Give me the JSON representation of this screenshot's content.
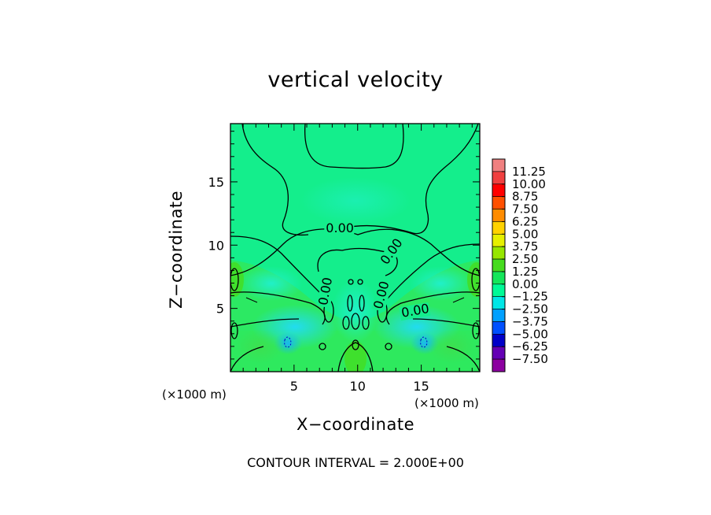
{
  "chart_data": {
    "type": "heatmap",
    "title": "vertical velocity",
    "xlabel": "X−coordinate",
    "ylabel": "Z−coordinate",
    "x_unit_label": "(×1000 m)",
    "x_unit_label_right": "(×1000 m)",
    "xlim": [
      0,
      19.6
    ],
    "ylim": [
      0,
      19.6
    ],
    "xticks": [
      5,
      10,
      15
    ],
    "yticks": [
      5,
      10,
      15
    ],
    "contour_interval_text": "CONTOUR INTERVAL = 2.000E+00",
    "contour_labels": [
      {
        "text": "0.00",
        "x": 7.5,
        "z": 11.0,
        "angle": 0
      },
      {
        "text": "0.00",
        "x": 12.3,
        "z": 8.4,
        "angle": -55
      },
      {
        "text": "0.00",
        "x": 7.6,
        "z": 5.2,
        "angle": -80
      },
      {
        "text": "0.00",
        "x": 11.9,
        "z": 4.9,
        "angle": -75
      },
      {
        "text": "0.00",
        "x": 13.5,
        "z": 4.3,
        "angle": -10
      }
    ],
    "colorbar": {
      "levels": [
        "11.25",
        "10.00",
        "8.75",
        "7.50",
        "6.25",
        "5.00",
        "3.75",
        "2.50",
        "1.25",
        "0.00",
        "−1.25",
        "−2.50",
        "−3.75",
        "−5.00",
        "−6.25",
        "−7.50"
      ],
      "colors": [
        "#f08080",
        "#f04040",
        "#ff0000",
        "#ff5000",
        "#ff8c00",
        "#ffd200",
        "#e6f000",
        "#96e600",
        "#46dc1e",
        "#14e65a",
        "#00fa96",
        "#00e6e6",
        "#00a0ff",
        "#0050ff",
        "#0000c8",
        "#6400b4",
        "#8c00a0"
      ]
    },
    "field_colors": {
      "background": "#14ee8c",
      "positive_band": "#2ce85a",
      "negative_band": "#19e6c8",
      "weak_negative": "#2cd4f0"
    }
  }
}
